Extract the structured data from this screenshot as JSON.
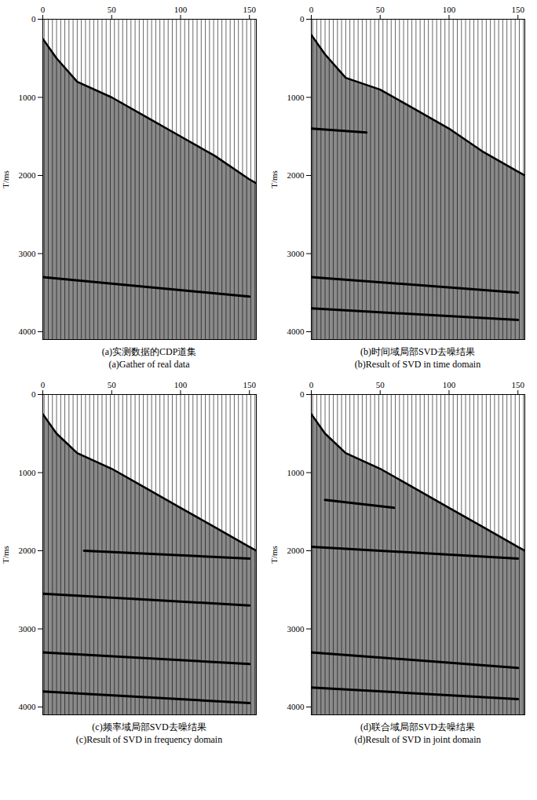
{
  "chart_data": [
    {
      "type": "seismic_gather",
      "title": "(a)实测数据的CDP道集",
      "subtitle": "(a)Gather of real data",
      "y_label": "T/ms",
      "xlim": [
        0,
        155
      ],
      "xticks": [
        0,
        50,
        100,
        150
      ],
      "ylim": [
        0,
        4100
      ],
      "yticks": [
        0,
        1000,
        2000,
        3000,
        4000
      ],
      "traces": [
        1,
        4,
        7,
        10,
        13,
        16,
        19,
        22,
        25,
        28,
        31,
        34,
        37,
        40,
        43,
        46,
        49,
        52,
        55,
        58,
        61,
        64,
        67,
        70,
        73,
        76,
        79,
        82,
        85,
        88,
        91,
        94,
        97,
        100,
        103,
        106,
        109,
        112,
        115,
        118,
        121,
        124,
        127,
        130,
        133,
        136,
        139,
        142,
        145,
        148,
        151,
        154
      ],
      "first_break": {
        "x": [
          0,
          10,
          25,
          50,
          75,
          100,
          125,
          150,
          155
        ],
        "t": [
          250,
          500,
          800,
          1000,
          1250,
          1500,
          1750,
          2050,
          2100
        ]
      },
      "events": [
        {
          "x": [
            0,
            150
          ],
          "t": [
            3300,
            3550
          ]
        }
      ]
    },
    {
      "type": "seismic_gather",
      "title": "(b)时间域局部SVD去噪结果",
      "subtitle": "(b)Result of SVD in time domain",
      "y_label": "T/ms",
      "xlim": [
        0,
        155
      ],
      "xticks": [
        0,
        50,
        100,
        150
      ],
      "ylim": [
        0,
        4100
      ],
      "yticks": [
        0,
        1000,
        2000,
        3000,
        4000
      ],
      "traces": [
        1,
        4,
        7,
        10,
        13,
        16,
        19,
        22,
        25,
        28,
        31,
        34,
        37,
        40,
        43,
        46,
        49,
        52,
        55,
        58,
        61,
        64,
        67,
        70,
        73,
        76,
        79,
        82,
        85,
        88,
        91,
        94,
        97,
        100,
        103,
        106,
        109,
        112,
        115,
        118,
        121,
        124,
        127,
        130,
        133,
        136,
        139,
        142,
        145,
        148,
        151,
        154
      ],
      "first_break": {
        "x": [
          0,
          10,
          25,
          50,
          75,
          100,
          125,
          150,
          155
        ],
        "t": [
          200,
          450,
          750,
          900,
          1150,
          1400,
          1700,
          1950,
          2000
        ]
      },
      "events": [
        {
          "x": [
            0,
            40
          ],
          "t": [
            1400,
            1450
          ]
        },
        {
          "x": [
            0,
            150
          ],
          "t": [
            3300,
            3500
          ]
        },
        {
          "x": [
            0,
            150
          ],
          "t": [
            3700,
            3850
          ]
        }
      ]
    },
    {
      "type": "seismic_gather",
      "title": "(c)频率域局部SVD去噪结果",
      "subtitle": "(c)Result of SVD in frequency domain",
      "y_label": "T/ms",
      "xlim": [
        0,
        155
      ],
      "xticks": [
        0,
        50,
        100,
        150
      ],
      "ylim": [
        0,
        4100
      ],
      "yticks": [
        0,
        1000,
        2000,
        3000,
        4000
      ],
      "traces": [
        1,
        4,
        7,
        10,
        13,
        16,
        19,
        22,
        25,
        28,
        31,
        34,
        37,
        40,
        43,
        46,
        49,
        52,
        55,
        58,
        61,
        64,
        67,
        70,
        73,
        76,
        79,
        82,
        85,
        88,
        91,
        94,
        97,
        100,
        103,
        106,
        109,
        112,
        115,
        118,
        121,
        124,
        127,
        130,
        133,
        136,
        139,
        142,
        145,
        148,
        151,
        154
      ],
      "first_break": {
        "x": [
          0,
          10,
          25,
          50,
          75,
          100,
          125,
          150,
          155
        ],
        "t": [
          250,
          500,
          750,
          950,
          1200,
          1450,
          1700,
          1950,
          2000
        ]
      },
      "events": [
        {
          "x": [
            30,
            150
          ],
          "t": [
            2000,
            2100
          ]
        },
        {
          "x": [
            0,
            150
          ],
          "t": [
            2550,
            2700
          ]
        },
        {
          "x": [
            0,
            150
          ],
          "t": [
            3300,
            3450
          ]
        },
        {
          "x": [
            0,
            150
          ],
          "t": [
            3800,
            3950
          ]
        }
      ]
    },
    {
      "type": "seismic_gather",
      "title": "(d)联合域局部SVD去噪结果",
      "subtitle": "(d)Result of SVD in joint domain",
      "y_label": "T/ms",
      "xlim": [
        0,
        155
      ],
      "xticks": [
        0,
        50,
        100,
        150
      ],
      "ylim": [
        0,
        4100
      ],
      "yticks": [
        0,
        1000,
        2000,
        3000,
        4000
      ],
      "traces": [
        1,
        4,
        7,
        10,
        13,
        16,
        19,
        22,
        25,
        28,
        31,
        34,
        37,
        40,
        43,
        46,
        49,
        52,
        55,
        58,
        61,
        64,
        67,
        70,
        73,
        76,
        79,
        82,
        85,
        88,
        91,
        94,
        97,
        100,
        103,
        106,
        109,
        112,
        115,
        118,
        121,
        124,
        127,
        130,
        133,
        136,
        139,
        142,
        145,
        148,
        151,
        154
      ],
      "first_break": {
        "x": [
          0,
          10,
          25,
          50,
          75,
          100,
          125,
          150,
          155
        ],
        "t": [
          250,
          500,
          750,
          950,
          1200,
          1450,
          1700,
          1950,
          2000
        ]
      },
      "events": [
        {
          "x": [
            10,
            60
          ],
          "t": [
            1350,
            1450
          ]
        },
        {
          "x": [
            0,
            150
          ],
          "t": [
            1950,
            2100
          ]
        },
        {
          "x": [
            0,
            150
          ],
          "t": [
            3300,
            3500
          ]
        },
        {
          "x": [
            0,
            150
          ],
          "t": [
            3750,
            3900
          ]
        }
      ]
    }
  ]
}
